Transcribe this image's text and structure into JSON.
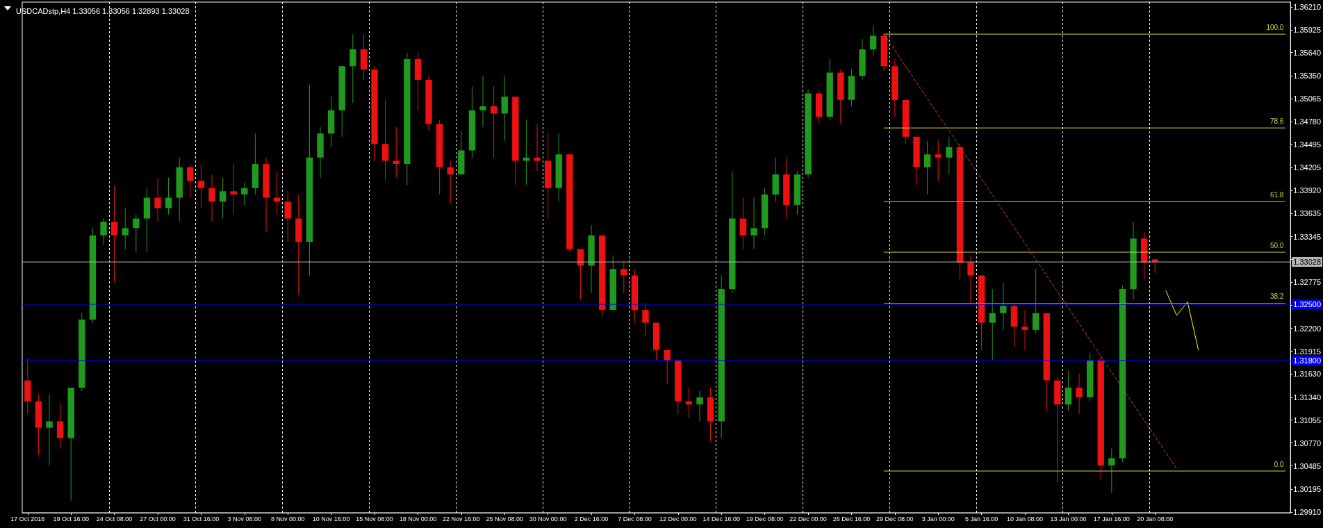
{
  "chart_data": {
    "type": "candlestick",
    "title": "USDCADstp,H4 1.33056 1.33056 1.32893 1.33028",
    "categories": [
      "17 Oct 2016",
      null,
      null,
      null,
      "19 Oct 16:00",
      null,
      null,
      null,
      "24 Oct 08:00",
      null,
      null,
      null,
      "27 Oct 00:00",
      null,
      null,
      null,
      "31 Oct 16:00",
      null,
      null,
      null,
      "3 Nov 08:00",
      null,
      null,
      null,
      "8 Nov 00:00",
      null,
      null,
      null,
      "10 Nov 16:00",
      null,
      null,
      null,
      "15 Nov 08:00",
      null,
      null,
      null,
      "18 Nov 00:00",
      null,
      null,
      null,
      "22 Nov 16:00",
      null,
      null,
      null,
      "25 Nov 08:00",
      null,
      null,
      null,
      "30 Nov 00:00",
      null,
      null,
      null,
      "2 Dec 16:00",
      null,
      null,
      null,
      "7 Dec 08:00",
      null,
      null,
      null,
      "12 Dec 00:00",
      null,
      null,
      null,
      "14 Dec 16:00",
      null,
      null,
      null,
      "19 Dec 08:00",
      null,
      null,
      null,
      "22 Dec 00:00",
      null,
      null,
      null,
      "26 Dec 16:00",
      null,
      null,
      null,
      "29 Dec 08:00",
      null,
      null,
      null,
      "3 Jan 00:00",
      null,
      null,
      null,
      "5 Jan 16:00",
      null,
      null,
      null,
      "10 Jan 08:00",
      null,
      null,
      null,
      "13 Jan 00:00",
      null,
      null,
      null,
      "17 Jan 16:00",
      null,
      null,
      null,
      "20 Jan 08:00",
      null,
      null,
      null,
      null,
      null,
      null,
      null,
      null,
      null,
      null,
      null,
      null
    ],
    "ylim": [
      1.299,
      1.3627
    ],
    "yticks": [
      {
        "value": 1.3621,
        "label": "1.36210"
      },
      1.35925,
      {
        "value": 1.3564,
        "label": "1.35640"
      },
      {
        "value": 1.3535,
        "label": "1.35350"
      },
      1.35065,
      {
        "value": 1.3478,
        "label": "1.34780"
      },
      1.34495,
      1.34205,
      {
        "value": 1.3392,
        "label": "1.33920"
      },
      1.33635,
      1.33345,
      {
        "value": 1.3306,
        "label": null
      },
      1.32775,
      {
        "value": 1.3249,
        "label": null
      },
      {
        "value": 1.322,
        "label": "1.32200"
      },
      1.31915,
      {
        "value": 1.3163,
        "label": "1.31630"
      },
      {
        "value": 1.3134,
        "label": "1.31340"
      },
      1.31055,
      {
        "value": 1.3077,
        "label": "1.30770"
      },
      1.30485,
      1.30195,
      {
        "value": 1.2991,
        "label": "1.29910"
      }
    ],
    "grid": "x",
    "marker": "none",
    "series": [
      {
        "ohlc": [
          [
            1.3155,
            1.3182,
            1.3113,
            1.3129
          ],
          [
            1.3129,
            1.3138,
            1.3062,
            1.3096
          ],
          [
            1.3096,
            1.3138,
            1.3049,
            1.3104
          ],
          [
            1.3104,
            1.3127,
            1.307,
            1.3083
          ],
          [
            1.3083,
            1.3146,
            1.3005,
            1.3146
          ],
          [
            1.3146,
            1.3239,
            1.3142,
            1.3231
          ],
          [
            1.3231,
            1.3345,
            1.3227,
            1.3336
          ],
          [
            1.3336,
            1.3357,
            1.3324,
            1.3353
          ],
          [
            1.3353,
            1.3397,
            1.3277,
            1.3336
          ],
          [
            1.3336,
            1.337,
            1.3319,
            1.3345
          ],
          [
            1.3345,
            1.3362,
            1.3315,
            1.3357
          ],
          [
            1.3357,
            1.3395,
            1.3315,
            1.3383
          ],
          [
            1.3383,
            1.3408,
            1.3353,
            1.337
          ],
          [
            1.337,
            1.3408,
            1.3362,
            1.3383
          ],
          [
            1.3383,
            1.3433,
            1.3353,
            1.3421
          ],
          [
            1.3421,
            1.3425,
            1.3383,
            1.3404
          ],
          [
            1.3404,
            1.3425,
            1.337,
            1.3395
          ],
          [
            1.3395,
            1.3412,
            1.3353,
            1.3378
          ],
          [
            1.3378,
            1.3408,
            1.3357,
            1.3391
          ],
          [
            1.3391,
            1.3425,
            1.3362,
            1.3387
          ],
          [
            1.3387,
            1.3402,
            1.3374,
            1.3395
          ],
          [
            1.3395,
            1.3463,
            1.3387,
            1.3425
          ],
          [
            1.3425,
            1.3433,
            1.334,
            1.3383
          ],
          [
            1.3383,
            1.3416,
            1.3362,
            1.3378
          ],
          [
            1.3378,
            1.3391,
            1.3328,
            1.3357
          ],
          [
            1.3357,
            1.3387,
            1.3262,
            1.3328
          ],
          [
            1.3328,
            1.3524,
            1.3286,
            1.3433
          ],
          [
            1.3433,
            1.3471,
            1.3408,
            1.3463
          ],
          [
            1.3463,
            1.3509,
            1.3446,
            1.3492
          ],
          [
            1.3492,
            1.3547,
            1.3459,
            1.3547
          ],
          [
            1.3547,
            1.3587,
            1.3501,
            1.3568
          ],
          [
            1.3568,
            1.3587,
            1.353,
            1.3543
          ],
          [
            1.3543,
            1.3547,
            1.3429,
            1.345
          ],
          [
            1.345,
            1.3505,
            1.3404,
            1.3429
          ],
          [
            1.3429,
            1.3471,
            1.3408,
            1.3425
          ],
          [
            1.3425,
            1.3564,
            1.3399,
            1.3556
          ],
          [
            1.3556,
            1.3564,
            1.3492,
            1.353
          ],
          [
            1.353,
            1.3535,
            1.3467,
            1.3475
          ],
          [
            1.3475,
            1.348,
            1.3387,
            1.3421
          ],
          [
            1.3421,
            1.3429,
            1.3376,
            1.3412
          ],
          [
            1.3412,
            1.3467,
            1.3412,
            1.3442
          ],
          [
            1.3442,
            1.3522,
            1.3433,
            1.3492
          ],
          [
            1.3492,
            1.3535,
            1.3471,
            1.3497
          ],
          [
            1.3497,
            1.3522,
            1.3433,
            1.3488
          ],
          [
            1.3488,
            1.3535,
            1.3454,
            1.3509
          ],
          [
            1.3509,
            1.3509,
            1.3399,
            1.3429
          ],
          [
            1.3429,
            1.348,
            1.3399,
            1.3433
          ],
          [
            1.3433,
            1.3475,
            1.3416,
            1.3429
          ],
          [
            1.3429,
            1.3463,
            1.3357,
            1.3395
          ],
          [
            1.3395,
            1.3463,
            1.3378,
            1.3437
          ],
          [
            1.3437,
            1.3437,
            1.3315,
            1.3319
          ],
          [
            1.3319,
            1.3319,
            1.3256,
            1.3298
          ],
          [
            1.3298,
            1.3349,
            1.3264,
            1.3336
          ],
          [
            1.3336,
            1.3336,
            1.3235,
            1.3243
          ],
          [
            1.3243,
            1.3311,
            1.3243,
            1.3294
          ],
          [
            1.3294,
            1.3302,
            1.3264,
            1.3286
          ],
          [
            1.3286,
            1.3294,
            1.3227,
            1.3243
          ],
          [
            1.3243,
            1.3252,
            1.321,
            1.3227
          ],
          [
            1.3227,
            1.3227,
            1.318,
            1.3193
          ],
          [
            1.3193,
            1.3193,
            1.315,
            1.318
          ],
          [
            1.318,
            1.318,
            1.3113,
            1.3129
          ],
          [
            1.3129,
            1.3146,
            1.3108,
            1.3125
          ],
          [
            1.3125,
            1.3142,
            1.3104,
            1.3134
          ],
          [
            1.3134,
            1.3146,
            1.3079,
            1.3104
          ],
          [
            1.3104,
            1.3286,
            1.3083,
            1.3269
          ],
          [
            1.3269,
            1.3416,
            1.3264,
            1.3357
          ],
          [
            1.3357,
            1.3383,
            1.3319,
            1.3336
          ],
          [
            1.3336,
            1.3383,
            1.3319,
            1.3345
          ],
          [
            1.3345,
            1.3395,
            1.3336,
            1.3387
          ],
          [
            1.3387,
            1.3433,
            1.3378,
            1.3412
          ],
          [
            1.3412,
            1.3433,
            1.3357,
            1.3374
          ],
          [
            1.3374,
            1.3416,
            1.3362,
            1.3412
          ],
          [
            1.3412,
            1.3518,
            1.3408,
            1.3513
          ],
          [
            1.3513,
            1.3518,
            1.3475,
            1.3484
          ],
          [
            1.3484,
            1.3556,
            1.348,
            1.3539
          ],
          [
            1.3539,
            1.3543,
            1.3475,
            1.3505
          ],
          [
            1.3505,
            1.3543,
            1.3497,
            1.3535
          ],
          [
            1.3535,
            1.3581,
            1.353,
            1.3568
          ],
          [
            1.3568,
            1.3598,
            1.356,
            1.3585
          ],
          [
            1.3585,
            1.3587,
            1.3541,
            1.3547
          ],
          [
            1.3547,
            1.3556,
            1.3484,
            1.3505
          ],
          [
            1.3505,
            1.3505,
            1.345,
            1.3459
          ],
          [
            1.3459,
            1.3459,
            1.3399,
            1.3421
          ],
          [
            1.3421,
            1.3454,
            1.3387,
            1.3437
          ],
          [
            1.3437,
            1.3454,
            1.3404,
            1.3433
          ],
          [
            1.3433,
            1.3459,
            1.3412,
            1.3446
          ],
          [
            1.3446,
            1.345,
            1.3281,
            1.3302
          ],
          [
            1.3302,
            1.3311,
            1.3252,
            1.3286
          ],
          [
            1.3286,
            1.3286,
            1.3193,
            1.3227
          ],
          [
            1.3227,
            1.3269,
            1.318,
            1.3239
          ],
          [
            1.3239,
            1.3277,
            1.3218,
            1.3248
          ],
          [
            1.3248,
            1.3252,
            1.3197,
            1.3222
          ],
          [
            1.3222,
            1.3243,
            1.3193,
            1.3218
          ],
          [
            1.3218,
            1.3294,
            1.3214,
            1.3239
          ],
          [
            1.3239,
            1.3239,
            1.3117,
            1.3155
          ],
          [
            1.3155,
            1.3159,
            1.3028,
            1.3125
          ],
          [
            1.3125,
            1.3167,
            1.3117,
            1.3146
          ],
          [
            1.3146,
            1.3163,
            1.3113,
            1.3134
          ],
          [
            1.3134,
            1.3189,
            1.3129,
            1.318
          ],
          [
            1.318,
            1.3184,
            1.3032,
            1.3049
          ],
          [
            1.3049,
            1.307,
            1.3015,
            1.3058
          ],
          [
            1.3058,
            1.3273,
            1.3053,
            1.3269
          ],
          [
            1.3269,
            1.3353,
            1.3256,
            1.3332
          ],
          [
            1.3332,
            1.334,
            1.3281,
            1.3302
          ],
          [
            1.3306,
            1.3306,
            1.3289,
            1.3303
          ],
          null,
          null,
          null,
          null,
          null,
          null,
          null,
          null,
          null,
          null,
          null,
          null
        ],
        "colors": [
          "#ee1111",
          "#ee1111",
          "#1f9a1f",
          "#ee1111",
          "#1f9a1f",
          "#1f9a1f",
          "#1f9a1f",
          "#1f9a1f",
          "#ee1111",
          "#1f9a1f",
          "#1f9a1f",
          "#1f9a1f",
          "#ee1111",
          "#1f9a1f",
          "#1f9a1f",
          "#ee1111",
          "#ee1111",
          "#ee1111",
          "#1f9a1f",
          "#ee1111",
          "#1f9a1f",
          "#1f9a1f",
          "#ee1111",
          "#ee1111",
          "#ee1111",
          "#ee1111",
          "#1f9a1f",
          "#1f9a1f",
          "#1f9a1f",
          "#1f9a1f",
          "#1f9a1f",
          "#ee1111",
          "#ee1111",
          "#ee1111",
          "#ee1111",
          "#1f9a1f",
          "#ee1111",
          "#ee1111",
          "#ee1111",
          "#ee1111",
          "#1f9a1f",
          "#1f9a1f",
          "#1f9a1f",
          "#ee1111",
          "#1f9a1f",
          "#ee1111",
          "#1f9a1f",
          "#ee1111",
          "#ee1111",
          "#1f9a1f",
          "#ee1111",
          "#ee1111",
          "#1f9a1f",
          "#ee1111",
          "#1f9a1f",
          "#ee1111",
          "#ee1111",
          "#ee1111",
          "#ee1111",
          "#ee1111",
          "#ee1111",
          "#ee1111",
          "#1f9a1f",
          "#ee1111",
          "#1f9a1f",
          "#1f9a1f",
          "#ee1111",
          "#1f9a1f",
          "#1f9a1f",
          "#1f9a1f",
          "#ee1111",
          "#1f9a1f",
          "#1f9a1f",
          "#ee1111",
          "#1f9a1f",
          "#ee1111",
          "#1f9a1f",
          "#1f9a1f",
          "#1f9a1f",
          "#ee1111",
          "#ee1111",
          "#ee1111",
          "#ee1111",
          "#1f9a1f",
          "#ee1111",
          "#1f9a1f",
          "#ee1111",
          "#ee1111",
          "#ee1111",
          "#1f9a1f",
          "#1f9a1f",
          "#ee1111",
          "#ee1111",
          "#1f9a1f",
          "#ee1111",
          "#ee1111",
          "#1f9a1f",
          "#ee1111",
          "#1f9a1f",
          "#ee1111",
          "#1f9a1f",
          "#1f9a1f",
          "#1f9a1f",
          "#ee1111",
          "#ee1111",
          null,
          null,
          null,
          null,
          null,
          null,
          null,
          null,
          null,
          null,
          null,
          null
        ]
      },
      {
        "type": "line",
        "name": "100.0",
        "color": "#d2d23c",
        "values": [
          null,
          null,
          null,
          null,
          null,
          null,
          null,
          null,
          null,
          null,
          null,
          null,
          null,
          null,
          null,
          null,
          null,
          null,
          null,
          null,
          null,
          null,
          null,
          null,
          null,
          null,
          null,
          null,
          null,
          null,
          null,
          null,
          null,
          null,
          null,
          null,
          null,
          null,
          null,
          null,
          null,
          null,
          null,
          null,
          null,
          null,
          null,
          null,
          null,
          null,
          null,
          null,
          null,
          null,
          null,
          null,
          null,
          null,
          null,
          null,
          null,
          null,
          null,
          null,
          null,
          null,
          null,
          null,
          null,
          null,
          null,
          null,
          null,
          null,
          null,
          null,
          null,
          null,
          null,
          1.3587,
          null,
          null,
          null,
          null,
          null,
          null,
          null,
          null,
          null,
          null,
          null,
          null,
          null,
          null,
          null,
          null,
          null,
          null,
          null,
          null,
          null,
          null,
          null,
          null,
          null,
          null,
          null,
          null,
          null,
          null,
          null,
          null,
          null,
          null,
          null,
          null,
          1.3587
        ]
      },
      {
        "type": "line",
        "name": "78.6",
        "color": "#d2d23c",
        "values": [
          null,
          null,
          null,
          null,
          null,
          null,
          null,
          null,
          null,
          null,
          null,
          null,
          null,
          null,
          null,
          null,
          null,
          null,
          null,
          null,
          null,
          null,
          null,
          null,
          null,
          null,
          null,
          null,
          null,
          null,
          null,
          null,
          null,
          null,
          null,
          null,
          null,
          null,
          null,
          null,
          null,
          null,
          null,
          null,
          null,
          null,
          null,
          null,
          null,
          null,
          null,
          null,
          null,
          null,
          null,
          null,
          null,
          null,
          null,
          null,
          null,
          null,
          null,
          null,
          null,
          null,
          null,
          null,
          null,
          null,
          null,
          null,
          null,
          null,
          null,
          null,
          null,
          null,
          null,
          1.347,
          null,
          null,
          null,
          null,
          null,
          null,
          null,
          null,
          null,
          null,
          null,
          null,
          null,
          null,
          null,
          null,
          null,
          null,
          null,
          null,
          null,
          null,
          null,
          null,
          null,
          null,
          null,
          null,
          null,
          null,
          null,
          null,
          null,
          null,
          null,
          null,
          1.347
        ]
      },
      {
        "type": "line",
        "name": "61.8",
        "color": "#d2d23c",
        "values": [
          null,
          null,
          null,
          null,
          null,
          null,
          null,
          null,
          null,
          null,
          null,
          null,
          null,
          null,
          null,
          null,
          null,
          null,
          null,
          null,
          null,
          null,
          null,
          null,
          null,
          null,
          null,
          null,
          null,
          null,
          null,
          null,
          null,
          null,
          null,
          null,
          null,
          null,
          null,
          null,
          null,
          null,
          null,
          null,
          null,
          null,
          null,
          null,
          null,
          null,
          null,
          null,
          null,
          null,
          null,
          null,
          null,
          null,
          null,
          null,
          null,
          null,
          null,
          null,
          null,
          null,
          null,
          null,
          null,
          null,
          null,
          null,
          null,
          null,
          null,
          null,
          null,
          null,
          null,
          1.3378,
          null,
          null,
          null,
          null,
          null,
          null,
          null,
          null,
          null,
          null,
          null,
          null,
          null,
          null,
          null,
          null,
          null,
          null,
          null,
          null,
          null,
          null,
          null,
          null,
          null,
          null,
          null,
          null,
          null,
          null,
          null,
          null,
          null,
          null,
          null,
          null,
          1.3378
        ]
      },
      {
        "type": "line",
        "name": "50.0",
        "color": "#d2d23c",
        "values": [
          null,
          null,
          null,
          null,
          null,
          null,
          null,
          null,
          null,
          null,
          null,
          null,
          null,
          null,
          null,
          null,
          null,
          null,
          null,
          null,
          null,
          null,
          null,
          null,
          null,
          null,
          null,
          null,
          null,
          null,
          null,
          null,
          null,
          null,
          null,
          null,
          null,
          null,
          null,
          null,
          null,
          null,
          null,
          null,
          null,
          null,
          null,
          null,
          null,
          null,
          null,
          null,
          null,
          null,
          null,
          null,
          null,
          null,
          null,
          null,
          null,
          null,
          null,
          null,
          null,
          null,
          null,
          null,
          null,
          null,
          null,
          null,
          null,
          null,
          null,
          null,
          null,
          null,
          null,
          1.3315,
          null,
          null,
          null,
          null,
          null,
          null,
          null,
          null,
          null,
          null,
          null,
          null,
          null,
          null,
          null,
          null,
          null,
          null,
          null,
          null,
          null,
          null,
          null,
          null,
          null,
          null,
          null,
          null,
          null,
          null,
          null,
          null,
          null,
          null,
          null,
          null,
          1.3315
        ]
      },
      {
        "type": "line",
        "name": "38.2",
        "color": "#d2d23c",
        "values": [
          null,
          null,
          null,
          null,
          null,
          null,
          null,
          null,
          null,
          null,
          null,
          null,
          null,
          null,
          null,
          null,
          null,
          null,
          null,
          null,
          null,
          null,
          null,
          null,
          null,
          null,
          null,
          null,
          null,
          null,
          null,
          null,
          null,
          null,
          null,
          null,
          null,
          null,
          null,
          null,
          null,
          null,
          null,
          null,
          null,
          null,
          null,
          null,
          null,
          null,
          null,
          null,
          null,
          null,
          null,
          null,
          null,
          null,
          null,
          null,
          null,
          null,
          null,
          null,
          null,
          null,
          null,
          null,
          null,
          null,
          null,
          null,
          null,
          null,
          null,
          null,
          null,
          null,
          null,
          1.3251,
          null,
          null,
          null,
          null,
          null,
          null,
          null,
          null,
          null,
          null,
          null,
          null,
          null,
          null,
          null,
          null,
          null,
          null,
          null,
          null,
          null,
          null,
          null,
          null,
          null,
          null,
          null,
          null,
          null,
          null,
          null,
          null,
          null,
          null,
          null,
          null,
          1.3251
        ]
      },
      {
        "type": "line",
        "name": "0.0",
        "color": "#d2d23c",
        "values": [
          null,
          null,
          null,
          null,
          null,
          null,
          null,
          null,
          null,
          null,
          null,
          null,
          null,
          null,
          null,
          null,
          null,
          null,
          null,
          null,
          null,
          null,
          null,
          null,
          null,
          null,
          null,
          null,
          null,
          null,
          null,
          null,
          null,
          null,
          null,
          null,
          null,
          null,
          null,
          null,
          null,
          null,
          null,
          null,
          null,
          null,
          null,
          null,
          null,
          null,
          null,
          null,
          null,
          null,
          null,
          null,
          null,
          null,
          null,
          null,
          null,
          null,
          null,
          null,
          null,
          null,
          null,
          null,
          null,
          null,
          null,
          null,
          null,
          null,
          null,
          null,
          null,
          null,
          null,
          1.3042,
          null,
          null,
          null,
          null,
          null,
          null,
          null,
          null,
          null,
          null,
          null,
          null,
          null,
          null,
          null,
          null,
          null,
          null,
          null,
          null,
          null,
          null,
          null,
          null,
          null,
          null,
          null,
          null,
          null,
          null,
          null,
          null,
          null,
          null,
          null,
          null,
          1.3042
        ]
      },
      {
        "type": "line",
        "color": "#d03c3c",
        "line_style": "dashed",
        "values": [
          null,
          null,
          null,
          null,
          null,
          null,
          null,
          null,
          null,
          null,
          null,
          null,
          null,
          null,
          null,
          null,
          null,
          null,
          null,
          null,
          null,
          null,
          null,
          null,
          null,
          null,
          null,
          null,
          null,
          null,
          null,
          null,
          null,
          null,
          null,
          null,
          null,
          null,
          null,
          null,
          null,
          null,
          null,
          null,
          null,
          null,
          null,
          null,
          null,
          null,
          null,
          null,
          null,
          null,
          null,
          null,
          null,
          null,
          null,
          null,
          null,
          null,
          null,
          null,
          null,
          null,
          null,
          null,
          null,
          null,
          null,
          null,
          null,
          null,
          null,
          null,
          null,
          null,
          null,
          1.3587,
          null,
          null,
          null,
          null,
          null,
          null,
          null,
          null,
          null,
          null,
          null,
          null,
          null,
          null,
          null,
          null,
          null,
          null,
          null,
          null,
          null,
          null,
          null,
          null,
          null,
          null,
          1.3045,
          null,
          null,
          null,
          null,
          null,
          null,
          null,
          null,
          null,
          null
        ]
      },
      {
        "type": "line",
        "color": "#ffff00",
        "values": [
          null,
          null,
          null,
          null,
          null,
          null,
          null,
          null,
          null,
          null,
          null,
          null,
          null,
          null,
          null,
          null,
          null,
          null,
          null,
          null,
          null,
          null,
          null,
          null,
          null,
          null,
          null,
          null,
          null,
          null,
          null,
          null,
          null,
          null,
          null,
          null,
          null,
          null,
          null,
          null,
          null,
          null,
          null,
          null,
          null,
          null,
          null,
          null,
          null,
          null,
          null,
          null,
          null,
          null,
          null,
          null,
          null,
          null,
          null,
          null,
          null,
          null,
          null,
          null,
          null,
          null,
          null,
          null,
          null,
          null,
          null,
          null,
          null,
          null,
          null,
          null,
          null,
          null,
          null,
          null,
          null,
          null,
          null,
          null,
          null,
          null,
          null,
          null,
          null,
          null,
          null,
          null,
          null,
          null,
          null,
          null,
          null,
          null,
          null,
          null,
          null,
          null,
          null,
          null,
          null,
          1.3267,
          1.3236,
          1.3253,
          1.3193,
          null,
          null,
          null,
          null,
          null,
          null,
          null,
          null
        ]
      }
    ],
    "ref_lines": [
      {
        "axis": "y",
        "value": 1.325,
        "label": "1.32500",
        "color": "#0000ee"
      },
      {
        "axis": "y",
        "value": 1.318,
        "label": "1.31800",
        "color": "#0000ee"
      },
      {
        "axis": "y",
        "value": 1.33028,
        "label": "1.33028",
        "color": "#b4b4b4"
      }
    ]
  }
}
